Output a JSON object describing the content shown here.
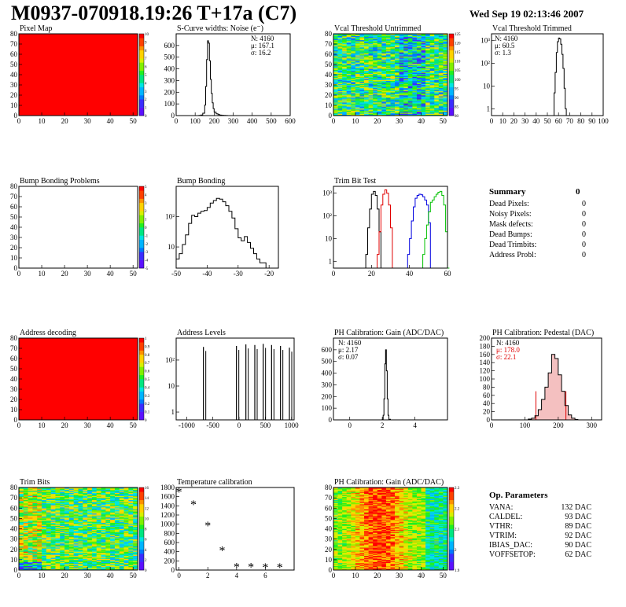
{
  "header": {
    "title": "M0937-070918.19:26 T+17a (C7)",
    "date": "Wed Sep 19 02:13:46 2007"
  },
  "colors": {
    "palette": [
      "#5a10ff",
      "#3a2cff",
      "#0078ff",
      "#00b4ff",
      "#00e6e0",
      "#00e680",
      "#20f020",
      "#80f000",
      "#d8f000",
      "#ffd200",
      "#ff9000",
      "#ff4000",
      "#ff0000"
    ],
    "hist_line": "#000000",
    "trim_series": [
      "#000000",
      "#e00000",
      "#0000e0",
      "#00c000"
    ],
    "red_text": "#e00000"
  },
  "chart_data": [
    {
      "id": "pixel-map",
      "type": "heatmap",
      "title": "Pixel Map",
      "xlim": [
        0,
        52
      ],
      "ylim": [
        0,
        80
      ],
      "xticks": [
        0,
        10,
        20,
        30,
        40,
        50
      ],
      "yticks": [
        0,
        10,
        20,
        30,
        40,
        50,
        60,
        70,
        80
      ],
      "fill": "uniform-max",
      "zlim": [
        0,
        10
      ],
      "zticks": [
        0,
        1,
        2,
        3,
        4,
        5,
        6,
        7,
        8,
        9,
        10
      ]
    },
    {
      "id": "scurve-noise",
      "type": "line",
      "title": "S-Curve widths: Noise (e⁻)",
      "xlim": [
        0,
        600
      ],
      "ylim": [
        0,
        700
      ],
      "xticks": [
        0,
        100,
        200,
        300,
        400,
        500,
        600
      ],
      "yticks": [
        0,
        100,
        200,
        300,
        400,
        500,
        600
      ],
      "x": [
        110,
        120,
        130,
        140,
        150,
        155,
        160,
        165,
        170,
        175,
        180,
        185,
        190,
        195,
        200,
        210,
        220,
        230,
        240,
        250,
        260,
        270
      ],
      "values": [
        0,
        2,
        5,
        20,
        90,
        250,
        480,
        640,
        620,
        470,
        310,
        190,
        110,
        60,
        30,
        15,
        8,
        4,
        3,
        2,
        1,
        0
      ],
      "stats": {
        "N": "4160",
        "mean": "167.1",
        "sigma": "16.2"
      }
    },
    {
      "id": "vcal-untrimmed",
      "type": "heatmap",
      "title": "Vcal Threshold Untrimmed",
      "xlim": [
        0,
        52
      ],
      "ylim": [
        0,
        80
      ],
      "xticks": [
        0,
        10,
        20,
        30,
        40,
        50
      ],
      "yticks": [
        0,
        10,
        20,
        30,
        40,
        50,
        60,
        70,
        80
      ],
      "fill": "noise-untrimmed",
      "zticks": [
        "80",
        "85",
        "90",
        "95",
        "100",
        "105",
        "110",
        "115",
        "120",
        "125"
      ]
    },
    {
      "id": "vcal-trimmed",
      "type": "line",
      "title": "Vcal Threshold Trimmed",
      "xlim": [
        0,
        100
      ],
      "log_y": true,
      "ylim": [
        0.5,
        2000
      ],
      "xticks": [
        0,
        10,
        20,
        30,
        40,
        50,
        60,
        70,
        80,
        90,
        100
      ],
      "yticks": [
        1,
        10,
        100,
        1000
      ],
      "ytick_labels": [
        "1",
        "10",
        "10²",
        "10³"
      ],
      "x": [
        55,
        56,
        57,
        58,
        59,
        60,
        61,
        62,
        63,
        64,
        65,
        66,
        67
      ],
      "values": [
        0,
        5,
        40,
        300,
        900,
        1300,
        1200,
        700,
        250,
        60,
        8,
        1,
        0
      ],
      "stats": {
        "N": "4160",
        "mean": "60.5",
        "sigma": "1.3"
      }
    },
    {
      "id": "bump-problems",
      "type": "heatmap",
      "title": "Bump Bonding Problems",
      "xlim": [
        0,
        52
      ],
      "ylim": [
        0,
        80
      ],
      "xticks": [
        0,
        10,
        20,
        30,
        40,
        50
      ],
      "yticks": [
        0,
        10,
        20,
        30,
        40,
        50,
        60,
        70,
        80
      ],
      "fill": "empty",
      "zticks": [
        "-5",
        "-4",
        "-3",
        "-2",
        "-1",
        "0",
        "1",
        "2",
        "3",
        "4",
        "5"
      ]
    },
    {
      "id": "bump-bonding",
      "type": "line",
      "title": "Bump Bonding",
      "xlim": [
        -50,
        -17
      ],
      "log_y": true,
      "ylim": [
        2,
        1000
      ],
      "xticks": [
        -50,
        -40,
        -30,
        -20
      ],
      "yticks": [
        10,
        100
      ],
      "ytick_labels": [
        "10",
        "10²"
      ],
      "x": [
        -50,
        -49,
        -48,
        -47,
        -46,
        -45,
        -44,
        -43,
        -42,
        -41,
        -40,
        -39,
        -38,
        -37,
        -36,
        -35,
        -34,
        -33,
        -32,
        -31,
        -30,
        -29,
        -28,
        -27,
        -26,
        -25,
        -24,
        -23,
        -22,
        -21,
        -20
      ],
      "values": [
        4,
        6,
        12,
        25,
        60,
        110,
        100,
        130,
        150,
        160,
        200,
        280,
        340,
        400,
        380,
        310,
        230,
        150,
        90,
        40,
        20,
        16,
        22,
        14,
        9,
        6,
        4,
        3,
        3,
        2,
        0
      ],
      "stats": {}
    },
    {
      "id": "trim-bit-test",
      "type": "line",
      "title": "Trim Bit Test",
      "xlim": [
        0,
        60
      ],
      "log_y": true,
      "ylim": [
        0.5,
        2000
      ],
      "xticks": [
        0,
        20,
        40,
        60
      ],
      "yticks": [
        1,
        10,
        100,
        1000
      ],
      "ytick_labels": [
        "1",
        "10",
        "10²",
        "10³"
      ],
      "series": [
        {
          "x": [
            16,
            17,
            18,
            19,
            20,
            21,
            22,
            23,
            24,
            25
          ],
          "values": [
            0,
            2,
            30,
            200,
            900,
            1200,
            800,
            200,
            20,
            0
          ]
        },
        {
          "x": [
            22,
            23,
            24,
            25,
            26,
            27,
            28,
            29,
            30,
            31
          ],
          "values": [
            0,
            2,
            20,
            300,
            900,
            1400,
            1000,
            300,
            30,
            0
          ]
        },
        {
          "x": [
            38,
            39,
            40,
            41,
            42,
            43,
            44,
            45,
            46,
            47,
            48,
            49,
            50,
            51
          ],
          "values": [
            0,
            2,
            10,
            60,
            250,
            600,
            800,
            900,
            850,
            700,
            500,
            300,
            50,
            0
          ]
        },
        {
          "x": [
            46,
            47,
            48,
            49,
            50,
            51,
            52,
            53,
            54,
            55,
            56,
            57,
            58,
            59,
            60
          ],
          "values": [
            0,
            2,
            10,
            40,
            150,
            400,
            500,
            700,
            900,
            1100,
            1200,
            800,
            300,
            20,
            0
          ]
        }
      ],
      "stats": {}
    },
    {
      "id": "address-decoding",
      "type": "heatmap",
      "title": "Address decoding",
      "xlim": [
        0,
        52
      ],
      "ylim": [
        0,
        80
      ],
      "xticks": [
        0,
        10,
        20,
        30,
        40,
        50
      ],
      "yticks": [
        0,
        10,
        20,
        30,
        40,
        50,
        60,
        70,
        80
      ],
      "fill": "uniform-max",
      "zticks": [
        "0",
        "0.1",
        "0.2",
        "0.3",
        "0.4",
        "0.5",
        "0.6",
        "0.7",
        "0.8",
        "0.9",
        "1"
      ]
    },
    {
      "id": "address-levels",
      "type": "spikes",
      "title": "Address Levels",
      "xlim": [
        -1200,
        1050
      ],
      "log_y": true,
      "ylim": [
        0.5,
        700
      ],
      "xticks": [
        -1000,
        -500,
        0,
        500,
        1000
      ],
      "yticks": [
        1,
        10,
        100
      ],
      "ytick_labels": [
        "1",
        "10",
        "10²"
      ],
      "x": [
        -680,
        -50,
        130,
        300,
        460,
        620,
        790,
        960
      ],
      "values": [
        320,
        350,
        400,
        380,
        420,
        380,
        350,
        300
      ],
      "stats": {}
    },
    {
      "id": "ph-gain",
      "type": "line",
      "title": "PH Calibration: Gain (ADC/DAC)",
      "xlim": [
        -1,
        6
      ],
      "ylim": [
        0,
        700
      ],
      "xticks": [
        0,
        2,
        4
      ],
      "yticks": [
        0,
        100,
        200,
        300,
        400,
        500,
        600
      ],
      "x": [
        1.9,
        2.0,
        2.05,
        2.1,
        2.15,
        2.2,
        2.25,
        2.3,
        2.35,
        2.4,
        2.5
      ],
      "values": [
        0,
        5,
        40,
        180,
        480,
        600,
        420,
        180,
        40,
        5,
        0
      ],
      "stats": {
        "N": "4160",
        "mean": "2.17",
        "sigma": "0.07"
      }
    },
    {
      "id": "ph-pedestal",
      "type": "line",
      "title": "PH Calibration: Pedestal (DAC)",
      "xlim": [
        0,
        330
      ],
      "ylim": [
        0,
        200
      ],
      "xticks": [
        0,
        100,
        200,
        300
      ],
      "yticks": [
        0,
        20,
        40,
        60,
        80,
        100,
        120,
        140,
        160,
        180,
        200
      ],
      "x": [
        110,
        120,
        130,
        140,
        150,
        160,
        170,
        180,
        190,
        200,
        210,
        220,
        230,
        240,
        250
      ],
      "values": [
        2,
        4,
        10,
        25,
        50,
        80,
        115,
        160,
        150,
        110,
        70,
        35,
        12,
        4,
        1
      ],
      "markers": [
        133,
        223
      ],
      "stats": {
        "N": "4160",
        "mean": "178.0",
        "sigma": "22.1"
      }
    },
    {
      "id": "trim-bits",
      "type": "heatmap",
      "title": "Trim Bits",
      "xlim": [
        0,
        52
      ],
      "ylim": [
        0,
        80
      ],
      "xticks": [
        0,
        10,
        20,
        30,
        40,
        50
      ],
      "yticks": [
        0,
        10,
        20,
        30,
        40,
        50,
        60,
        70,
        80
      ],
      "fill": "noise-trim",
      "zticks": [
        "0",
        "2",
        "4",
        "6",
        "8",
        "10",
        "12",
        "14",
        "16"
      ]
    },
    {
      "id": "temperature",
      "type": "scatter",
      "title": "Temperature calibration",
      "xlim": [
        -0.2,
        8
      ],
      "ylim": [
        0,
        1800
      ],
      "xticks": [
        0,
        2,
        4,
        6
      ],
      "yticks": [
        0,
        200,
        400,
        600,
        800,
        1000,
        1200,
        1400,
        1600,
        1800
      ],
      "x": [
        0,
        1,
        2,
        3,
        4,
        5,
        6,
        7
      ],
      "values": [
        1700,
        1420,
        960,
        420,
        60,
        60,
        50,
        50
      ],
      "stats": {}
    },
    {
      "id": "ph-gain-map",
      "type": "heatmap",
      "title": "PH Calibration: Gain (ADC/DAC)",
      "xlim": [
        0,
        52
      ],
      "ylim": [
        0,
        80
      ],
      "xticks": [
        0,
        10,
        20,
        30,
        40,
        50
      ],
      "yticks": [
        0,
        10,
        20,
        30,
        40,
        50,
        60,
        70,
        80
      ],
      "fill": "noise-gain",
      "zticks": [
        "1.9",
        "2",
        "2.1",
        "2.2",
        "2.3"
      ]
    }
  ],
  "summary": {
    "title": "Summary",
    "total": "0",
    "rows": [
      {
        "label": "Dead Pixels:",
        "value": "0"
      },
      {
        "label": "Noisy Pixels:",
        "value": "0"
      },
      {
        "label": "Mask defects:",
        "value": "0"
      },
      {
        "label": "Dead Bumps:",
        "value": "0"
      },
      {
        "label": "Dead Trimbits:",
        "value": "0"
      },
      {
        "label": "Address Probl:",
        "value": "0"
      }
    ]
  },
  "op_parameters": {
    "title": "Op. Parameters",
    "rows": [
      {
        "label": "VANA:",
        "value": "132 DAC"
      },
      {
        "label": "CALDEL:",
        "value": "93 DAC"
      },
      {
        "label": "VTHR:",
        "value": "89 DAC"
      },
      {
        "label": "VTRIM:",
        "value": "92 DAC"
      },
      {
        "label": "IBIAS_DAC:",
        "value": "90 DAC"
      },
      {
        "label": "VOFFSETOP:",
        "value": "62 DAC"
      }
    ]
  }
}
